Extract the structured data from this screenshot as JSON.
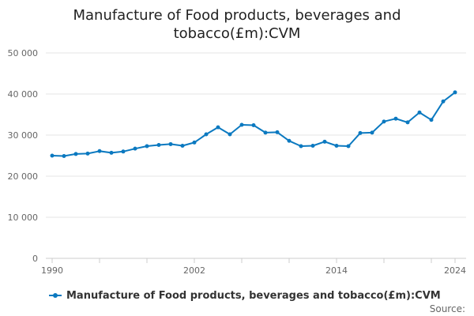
{
  "chart_data": {
    "type": "line",
    "title_lines": [
      "Manufacture of Food products, beverages and",
      "tobacco(£m):CVM"
    ],
    "xlabel": "",
    "ylabel": "",
    "xlim": [
      1990,
      2024
    ],
    "ylim": [
      0,
      50000
    ],
    "x_ticks": [
      1990,
      2002,
      2014,
      2024
    ],
    "x_tick_labels": [
      "1990",
      "2002",
      "2014",
      "2024"
    ],
    "y_ticks": [
      0,
      10000,
      20000,
      30000,
      40000,
      50000
    ],
    "y_tick_labels": [
      "0",
      "10 000",
      "20 000",
      "30 000",
      "40 000",
      "50 000"
    ],
    "grid": true,
    "series": [
      {
        "name": "Manufacture of Food products, beverages and tobacco(£m):CVM",
        "color": "#0b79c0",
        "x": [
          1990,
          1991,
          1992,
          1993,
          1994,
          1995,
          1996,
          1997,
          1998,
          1999,
          2000,
          2001,
          2002,
          2003,
          2004,
          2005,
          2006,
          2007,
          2008,
          2009,
          2010,
          2011,
          2012,
          2013,
          2014,
          2015,
          2016,
          2017,
          2018,
          2019,
          2020,
          2021,
          2022,
          2023,
          2024
        ],
        "values": [
          25000,
          24900,
          25400,
          25500,
          26100,
          25700,
          26000,
          26700,
          27300,
          27600,
          27800,
          27400,
          28200,
          30200,
          31900,
          30200,
          32500,
          32400,
          30600,
          30700,
          28600,
          27300,
          27400,
          28400,
          27400,
          27300,
          30500,
          30600,
          33300,
          34000,
          33100,
          35500,
          33700,
          38200,
          40400
        ]
      }
    ],
    "legend_position": "bottom-left"
  },
  "footer": {
    "source_label": "Source:"
  }
}
